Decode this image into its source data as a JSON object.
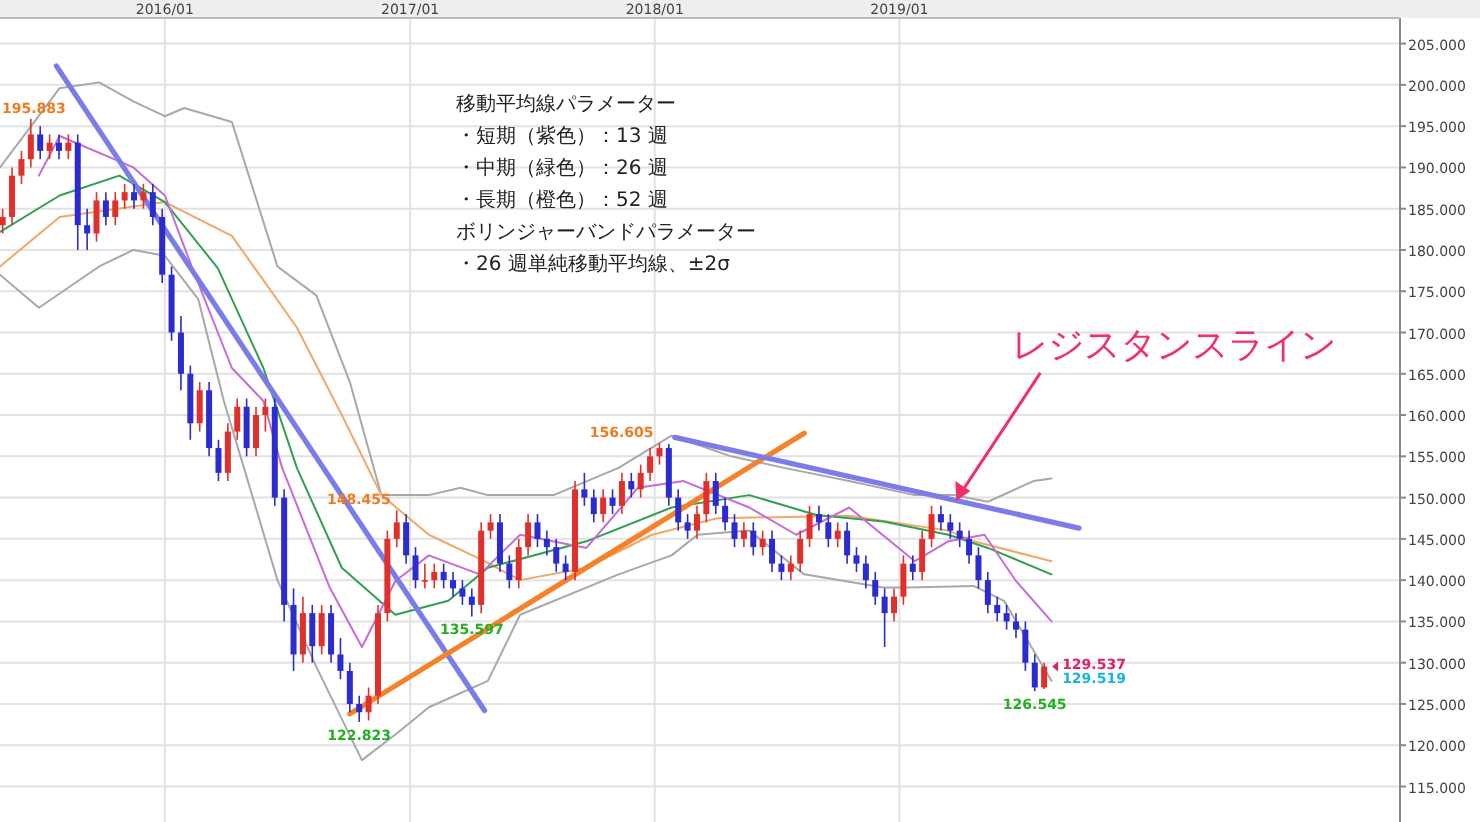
{
  "chart_data": {
    "type": "candlestick",
    "grid": true,
    "colors": [
      "#e0302c",
      "#e0302c",
      "#e0302c",
      "#e0302c",
      "#2b2bd0",
      "#e0302c",
      "#2b2bd0",
      "#e0302c",
      "#2b2bd0",
      "#2b2bd0",
      "#e0302c",
      "#2b2bd0",
      "#e0302c",
      "#e0302c",
      "#2b2bd0",
      "#e0302c",
      "#2b2bd0",
      "#2b2bd0",
      "#2b2bd0",
      "#2b2bd0",
      "#2b2bd0",
      "#e0302c",
      "#2b2bd0",
      "#2b2bd0",
      "#e0302c",
      "#e0302c",
      "#2b2bd0",
      "#e0302c",
      "#e0302c",
      "#2b2bd0",
      "#2b2bd0",
      "#2b2bd0",
      "#e0302c",
      "#2b2bd0",
      "#e0302c",
      "#2b2bd0",
      "#2b2bd0",
      "#2b2bd0",
      "#2b2bd0",
      "#e0302c",
      "#e0302c",
      "#e0302c",
      "#e0302c",
      "#2b2bd0",
      "#2b2bd0",
      "#e0302c",
      "#e0302c",
      "#2b2bd0",
      "#2b2bd0",
      "#2b2bd0",
      "#2b2bd0",
      "#e0302c",
      "#e0302c",
      "#2b2bd0",
      "#2b2bd0",
      "#e0302c",
      "#e0302c",
      "#2b2bd0",
      "#2b2bd0",
      "#2b2bd0",
      "#2b2bd0",
      "#e0302c",
      "#2b2bd0",
      "#2b2bd0",
      "#e0302c",
      "#2b2bd0",
      "#e0302c",
      "#2b2bd0",
      "#e0302c",
      "#e0302c",
      "#e0302c",
      "#2b2bd0",
      "#2b2bd0",
      "#2b2bd0",
      "#e0302c",
      "#e0302c",
      "#2b2bd0",
      "#2b2bd0",
      "#2b2bd0",
      "#e0302c",
      "#2b2bd0",
      "#e0302c",
      "#2b2bd0",
      "#2b2bd0",
      "#e0302c",
      "#e0302c",
      "#e0302c",
      "#2b2bd0",
      "#2b2bd0",
      "#e0302c",
      "#2b2bd0",
      "#2b2bd0",
      "#2b2bd0",
      "#2b2bd0",
      "#2b2bd0",
      "#e0302c",
      "#e0302c",
      "#2b2bd0",
      "#e0302c",
      "#e0302c",
      "#2b2bd0",
      "#2b2bd0",
      "#2b2bd0",
      "#2b2bd0",
      "#2b2bd0",
      "#2b2bd0",
      "#2b2bd0",
      "#2b2bd0",
      "#2b2bd0",
      "#2b2bd0",
      "#2b2bd0",
      "#e0302c"
    ],
    "xlim": [
      "2015-04-30",
      "2021-01-17"
    ],
    "ylim": [
      110.7,
      208.1
    ],
    "xticks": [
      {
        "value": "2016-01-01",
        "label": "2016/01"
      },
      {
        "value": "2017-01-01",
        "label": "2017/01"
      },
      {
        "value": "2018-01-01",
        "label": "2018/01"
      },
      {
        "value": "2019-01-01",
        "label": "2019/01"
      }
    ],
    "yticks": [
      {
        "value": 115,
        "label": "115.000"
      },
      {
        "value": 120,
        "label": "120.000"
      },
      {
        "value": 125,
        "label": "125.000"
      },
      {
        "value": 130,
        "label": "130.000"
      },
      {
        "value": 135,
        "label": "135.000"
      },
      {
        "value": 140,
        "label": "140.000"
      },
      {
        "value": 145,
        "label": "145.000"
      },
      {
        "value": 150,
        "label": "150.000"
      },
      {
        "value": 155,
        "label": "155.000"
      },
      {
        "value": 160,
        "label": "160.000"
      },
      {
        "value": 165,
        "label": "165.000"
      },
      {
        "value": 170,
        "label": "170.000"
      },
      {
        "value": 175,
        "label": "175.000"
      },
      {
        "value": 180,
        "label": "180.000"
      },
      {
        "value": 185,
        "label": "185.000"
      },
      {
        "value": 190,
        "label": "190.000"
      },
      {
        "value": 195,
        "label": "195.000"
      },
      {
        "value": 200,
        "label": "200.000"
      },
      {
        "value": 205,
        "label": "205.000"
      }
    ],
    "x": [
      "2015-05-04",
      "2015-05-18",
      "2015-06-01",
      "2015-06-15",
      "2015-06-29",
      "2015-07-13",
      "2015-07-27",
      "2015-08-10",
      "2015-08-24",
      "2015-09-07",
      "2015-09-21",
      "2015-10-05",
      "2015-10-19",
      "2015-11-02",
      "2015-11-16",
      "2015-11-30",
      "2015-12-14",
      "2015-12-28",
      "2016-01-11",
      "2016-01-25",
      "2016-02-08",
      "2016-02-22",
      "2016-03-07",
      "2016-03-21",
      "2016-04-04",
      "2016-04-18",
      "2016-05-02",
      "2016-05-16",
      "2016-05-30",
      "2016-06-13",
      "2016-06-27",
      "2016-07-11",
      "2016-07-25",
      "2016-08-08",
      "2016-08-22",
      "2016-09-05",
      "2016-09-19",
      "2016-10-03",
      "2016-10-17",
      "2016-10-31",
      "2016-11-14",
      "2016-11-28",
      "2016-12-12",
      "2016-12-26",
      "2017-01-09",
      "2017-01-23",
      "2017-02-06",
      "2017-02-20",
      "2017-03-06",
      "2017-03-20",
      "2017-04-03",
      "2017-04-17",
      "2017-05-01",
      "2017-05-15",
      "2017-05-29",
      "2017-06-12",
      "2017-06-26",
      "2017-07-10",
      "2017-07-24",
      "2017-08-07",
      "2017-08-21",
      "2017-09-04",
      "2017-09-18",
      "2017-10-02",
      "2017-10-16",
      "2017-10-30",
      "2017-11-13",
      "2017-11-27",
      "2017-12-11",
      "2017-12-25",
      "2018-01-08",
      "2018-01-22",
      "2018-02-05",
      "2018-02-19",
      "2018-03-05",
      "2018-03-19",
      "2018-04-02",
      "2018-04-16",
      "2018-04-30",
      "2018-05-14",
      "2018-05-28",
      "2018-06-11",
      "2018-06-25",
      "2018-07-09",
      "2018-07-23",
      "2018-08-06",
      "2018-08-20",
      "2018-09-03",
      "2018-09-17",
      "2018-10-01",
      "2018-10-15",
      "2018-10-29",
      "2018-11-12",
      "2018-11-26",
      "2018-12-10",
      "2018-12-24",
      "2019-01-07",
      "2019-01-21",
      "2019-02-04",
      "2019-02-18",
      "2019-03-04",
      "2019-03-18",
      "2019-04-01",
      "2019-04-15",
      "2019-04-29",
      "2019-05-13",
      "2019-05-27",
      "2019-06-10",
      "2019-06-24",
      "2019-07-08",
      "2019-07-22",
      "2019-08-05"
    ],
    "ohlc": [
      [
        183,
        185,
        182,
        184
      ],
      [
        184,
        190,
        183,
        189
      ],
      [
        189,
        192,
        188,
        191
      ],
      [
        191,
        195.883,
        190,
        194
      ],
      [
        194,
        195,
        191,
        192
      ],
      [
        192,
        194,
        191,
        193
      ],
      [
        193,
        194,
        191,
        192
      ],
      [
        192,
        194,
        191,
        193
      ],
      [
        193,
        194,
        180,
        183
      ],
      [
        183,
        185,
        180,
        182
      ],
      [
        182,
        187,
        181,
        186
      ],
      [
        186,
        187,
        183,
        184
      ],
      [
        184,
        187,
        183,
        186
      ],
      [
        186,
        188,
        185,
        187
      ],
      [
        187,
        188,
        185,
        186
      ],
      [
        186,
        188,
        185,
        187
      ],
      [
        187,
        188,
        183,
        184
      ],
      [
        184,
        185,
        176,
        177
      ],
      [
        177,
        178,
        169,
        170
      ],
      [
        170,
        172,
        163,
        165
      ],
      [
        165,
        166,
        157,
        159
      ],
      [
        159,
        164,
        158,
        163
      ],
      [
        163,
        164,
        155,
        156
      ],
      [
        156,
        157,
        152,
        153
      ],
      [
        153,
        159,
        152,
        158
      ],
      [
        158,
        162,
        157,
        161
      ],
      [
        161,
        162,
        155,
        156
      ],
      [
        156,
        161,
        155,
        160
      ],
      [
        160,
        162,
        158,
        161
      ],
      [
        161,
        162,
        149,
        150
      ],
      [
        150,
        151,
        135,
        137
      ],
      [
        137,
        139,
        129,
        131
      ],
      [
        131,
        138,
        130,
        136
      ],
      [
        136,
        137,
        130,
        132
      ],
      [
        132,
        137,
        131,
        136
      ],
      [
        136,
        137,
        130,
        131
      ],
      [
        131,
        133,
        128,
        129
      ],
      [
        129,
        130,
        124,
        125
      ],
      [
        125,
        126,
        122.823,
        124
      ],
      [
        124,
        127,
        123,
        126
      ],
      [
        126,
        137,
        125,
        136
      ],
      [
        136,
        146,
        135,
        145
      ],
      [
        145,
        148.455,
        144,
        147
      ],
      [
        147,
        148,
        142,
        143
      ],
      [
        143,
        144,
        139,
        140
      ],
      [
        140,
        142,
        139,
        140
      ],
      [
        140,
        142,
        139,
        141
      ],
      [
        141,
        142,
        139,
        140
      ],
      [
        140,
        141,
        138,
        139
      ],
      [
        139,
        140,
        137,
        138
      ],
      [
        138,
        139,
        135.597,
        137
      ],
      [
        137,
        147,
        136,
        146
      ],
      [
        146,
        148,
        145,
        147
      ],
      [
        147,
        148,
        141,
        142
      ],
      [
        142,
        143,
        139,
        140
      ],
      [
        140,
        145,
        139,
        144
      ],
      [
        144,
        148,
        143,
        147
      ],
      [
        147,
        148,
        144,
        145
      ],
      [
        145,
        146,
        143,
        144
      ],
      [
        144,
        145,
        141,
        142
      ],
      [
        142,
        143,
        140,
        141
      ],
      [
        141,
        152,
        140,
        151
      ],
      [
        151,
        153,
        149,
        150
      ],
      [
        150,
        151,
        147,
        148
      ],
      [
        148,
        151,
        147,
        150
      ],
      [
        150,
        151,
        148,
        149
      ],
      [
        149,
        153,
        148,
        152
      ],
      [
        152,
        153,
        150,
        151
      ],
      [
        151,
        154,
        150,
        153
      ],
      [
        153,
        156,
        152,
        155
      ],
      [
        155,
        156.605,
        154,
        156
      ],
      [
        156,
        156.5,
        149,
        150
      ],
      [
        150,
        151,
        146,
        147
      ],
      [
        147,
        148,
        145,
        146
      ],
      [
        146,
        149,
        145,
        148
      ],
      [
        148,
        153,
        147,
        152
      ],
      [
        152,
        153,
        148,
        149
      ],
      [
        149,
        150,
        146,
        147
      ],
      [
        147,
        148,
        144,
        145
      ],
      [
        145,
        147,
        144,
        146
      ],
      [
        146,
        147,
        143,
        144
      ],
      [
        144,
        146,
        143,
        145
      ],
      [
        145,
        146,
        141,
        142
      ],
      [
        142,
        143,
        140,
        141
      ],
      [
        141,
        143,
        140,
        142
      ],
      [
        142,
        146,
        141,
        145
      ],
      [
        145,
        149,
        144,
        148
      ],
      [
        148,
        149,
        146,
        147
      ],
      [
        147,
        148,
        144,
        145
      ],
      [
        145,
        147,
        144,
        146
      ],
      [
        146,
        147,
        142,
        143
      ],
      [
        143,
        144,
        141,
        142
      ],
      [
        142,
        143,
        139,
        140
      ],
      [
        140,
        141,
        137,
        138
      ],
      [
        138,
        139,
        131.9,
        136
      ],
      [
        136,
        139,
        135,
        138
      ],
      [
        138,
        143,
        137,
        142
      ],
      [
        142,
        143,
        140,
        141
      ],
      [
        141,
        146,
        140,
        145
      ],
      [
        145,
        149,
        144,
        148
      ],
      [
        148,
        149,
        146,
        147
      ],
      [
        147,
        148,
        145,
        146
      ],
      [
        146,
        147,
        144,
        145
      ],
      [
        145,
        146,
        142,
        143
      ],
      [
        143,
        144,
        139,
        140
      ],
      [
        140,
        141,
        136,
        137
      ],
      [
        137,
        138,
        135,
        136
      ],
      [
        136,
        137,
        134,
        135
      ],
      [
        135,
        136,
        133,
        134
      ],
      [
        134,
        135,
        129,
        130
      ],
      [
        130,
        131,
        126.545,
        127
      ],
      [
        127,
        130,
        126.8,
        129.537
      ]
    ],
    "series": [
      {
        "type": "line",
        "color": "#a8a8a8",
        "x": [
          "2015-04-30",
          "2015-07-28",
          "2015-09-25",
          "2015-11-15",
          "2016-01-01",
          "2016-01-30",
          "2016-04-10",
          "2016-06-17",
          "2016-08-14",
          "2016-10-03",
          "2016-11-19",
          "2017-01-29",
          "2017-03-17",
          "2017-04-27",
          "2017-08-03",
          "2017-11-08",
          "2018-01-26",
          "2018-04-25",
          "2018-07-13",
          "2018-10-18",
          "2019-01-24",
          "2019-03-24",
          "2019-05-13",
          "2019-07-20",
          "2019-08-16"
        ],
        "values": [
          190,
          199.6,
          200.3,
          198,
          196.2,
          197.2,
          195.5,
          178,
          174.5,
          164,
          150.3,
          150.3,
          151.2,
          150.3,
          150.3,
          153.6,
          157.5,
          155,
          153.6,
          152,
          150.3,
          150.3,
          149.5,
          152,
          152.3
        ]
      },
      {
        "type": "line",
        "color": "#a8a8a8",
        "x": [
          "2015-04-30",
          "2015-06-27",
          "2015-09-25",
          "2015-11-15",
          "2016-01-01",
          "2016-02-20",
          "2016-03-29",
          "2016-04-28",
          "2016-06-17",
          "2016-08-14",
          "2016-10-21",
          "2016-12-10",
          "2017-01-29",
          "2017-04-27",
          "2017-06-14",
          "2017-11-08",
          "2018-01-26",
          "2018-03-06",
          "2018-05-22",
          "2018-08-12",
          "2018-12-08",
          "2019-01-15",
          "2019-04-22",
          "2019-06-06",
          "2019-08-16"
        ],
        "values": [
          177,
          173,
          178,
          180,
          179.3,
          174,
          161.7,
          153.6,
          140,
          129.5,
          118.2,
          121.3,
          124.6,
          127.8,
          135.8,
          140.7,
          143,
          145.5,
          146,
          140.7,
          139.1,
          139.1,
          139.3,
          137.5,
          127.8
        ]
      },
      {
        "type": "line",
        "color": "#f0a868",
        "x": [
          "2015-04-30",
          "2015-07-28",
          "2016-01-01",
          "2016-04-10",
          "2016-07-16",
          "2016-09-21",
          "2016-11-19",
          "2017-01-29",
          "2017-04-22",
          "2017-06-14",
          "2017-09-21",
          "2017-12-28",
          "2018-04-04",
          "2018-10-18",
          "2019-03-15",
          "2019-04-22",
          "2019-08-16"
        ],
        "values": [
          178,
          184,
          185.8,
          181.7,
          170.6,
          160,
          150.3,
          145.5,
          142.3,
          140,
          141.5,
          145.5,
          147.5,
          147.8,
          146,
          144.7,
          142.3
        ]
      },
      {
        "type": "line",
        "color": "#30a050",
        "x": [
          "2015-04-30",
          "2015-07-28",
          "2015-10-25",
          "2016-01-01",
          "2016-03-20",
          "2016-05-27",
          "2016-07-16",
          "2016-09-21",
          "2016-12-10",
          "2017-02-27",
          "2017-04-27",
          "2017-09-21",
          "2018-01-26",
          "2018-05-22",
          "2018-08-30",
          "2018-12-08",
          "2019-03-15",
          "2019-05-13",
          "2019-08-16"
        ],
        "values": [
          182.2,
          186.6,
          189,
          185.8,
          177.8,
          165.7,
          153.6,
          141.5,
          135.8,
          137.5,
          141.5,
          144.7,
          148.8,
          150.3,
          147.9,
          147.1,
          145.5,
          143.9,
          140.7
        ]
      },
      {
        "type": "line",
        "color": "#c86ad8",
        "x": [
          "2015-06-27",
          "2015-07-28",
          "2015-11-15",
          "2016-01-01",
          "2016-02-11",
          "2016-04-10",
          "2016-05-27",
          "2016-06-24",
          "2016-09-03",
          "2016-10-21",
          "2016-12-10",
          "2017-01-29",
          "2017-04-15",
          "2017-06-14",
          "2017-09-21",
          "2017-12-07",
          "2018-02-13",
          "2018-05-22",
          "2018-07-31",
          "2018-10-18",
          "2019-01-24",
          "2019-03-15",
          "2019-05-08",
          "2019-06-24",
          "2019-08-16"
        ],
        "values": [
          189,
          193.8,
          190,
          186.6,
          177.8,
          165.7,
          161.7,
          153.6,
          139.1,
          131.9,
          139.9,
          143,
          140.7,
          145.5,
          143.9,
          151.2,
          152,
          148.8,
          145.5,
          148.8,
          142.3,
          144.7,
          145.5,
          139.9,
          135
        ]
      },
      {
        "type": "line",
        "color": "#7b7bea",
        "x": [
          "2015-07-23",
          "2017-04-22"
        ],
        "values": [
          202.3,
          124.2
        ]
      },
      {
        "type": "line",
        "color": "#f5822a",
        "x": [
          "2016-10-03",
          "2018-08-12"
        ],
        "values": [
          123.8,
          157.8
        ]
      },
      {
        "type": "line",
        "color": "#7b7bea",
        "x": [
          "2018-01-31",
          "2019-09-26"
        ],
        "values": [
          157.3,
          146.3
        ]
      }
    ],
    "annotations": [
      "移動平均線パラメーター",
      "・短期（紫色）：13 週",
      "・中期（緑色）：26 週",
      "・長期（橙色）：52 週",
      "ボリンジャーバンドパラメーター",
      "・26 週単純移動平均線、±2σ",
      {
        "text": "195.883",
        "x": "2015-06-15",
        "y": 195.883
      },
      {
        "text": "148.455",
        "x": "2016-12-12",
        "y": 148.455
      },
      {
        "text": "122.823",
        "x": "2016-10-17",
        "y": 122.823
      },
      {
        "text": "135.597",
        "x": "2017-04-03",
        "y": 135.597
      },
      {
        "text": "156.605",
        "x": "2018-01-08",
        "y": 156.605
      },
      {
        "text": "126.545",
        "x": "2019-07-22",
        "y": 126.545
      },
      {
        "text": "129.537",
        "x": "2019-08-05",
        "y": 129.537
      },
      {
        "text": "129.519",
        "x": "2019-08-05",
        "y": 129.519
      },
      {
        "text": "レジスタンスライン",
        "x": "2019-03-27",
        "y": 149.6
      }
    ]
  }
}
